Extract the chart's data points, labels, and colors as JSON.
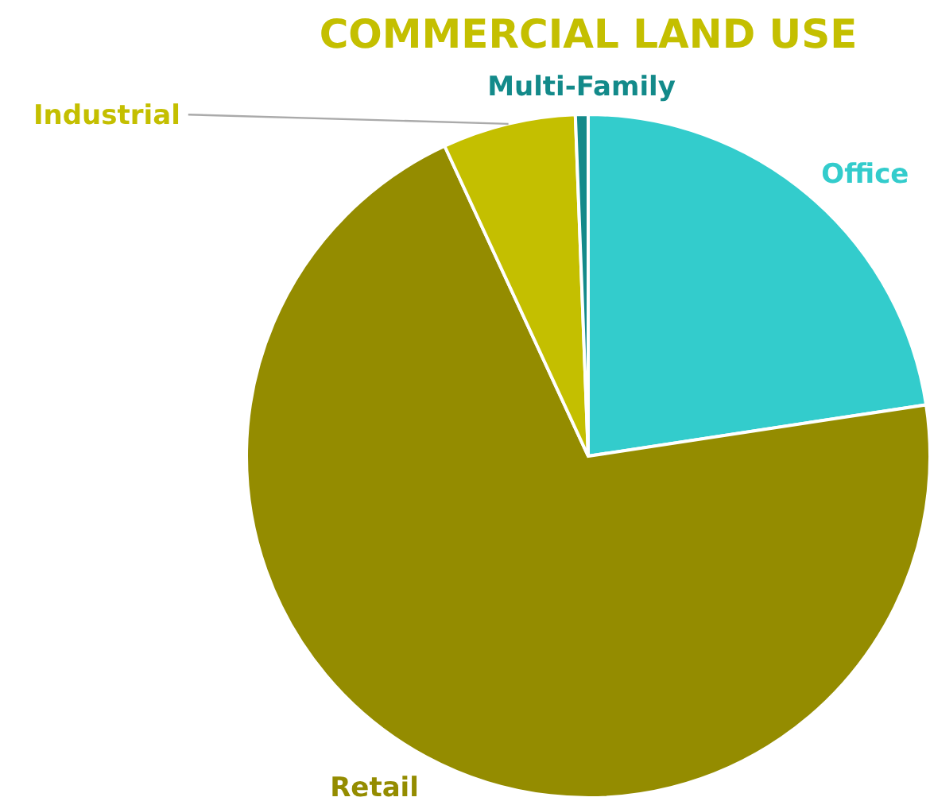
{
  "chart_data": {
    "type": "pie",
    "title": "COMMERCIAL LAND USE",
    "categories": [
      "Office",
      "Retail",
      "Industrial",
      "Multi-Family"
    ],
    "values": [
      22.6,
      70.5,
      6.3,
      0.6
    ],
    "colors": [
      "#33cccc",
      "#948c00",
      "#c4bf00",
      "#138a8a"
    ]
  }
}
